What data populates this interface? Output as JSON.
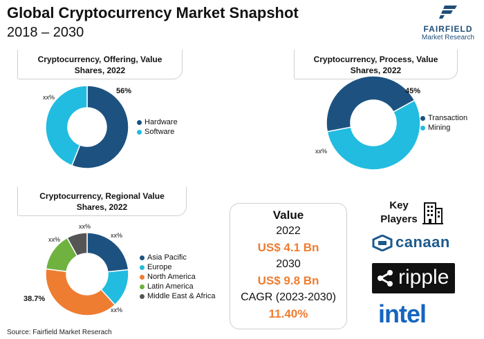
{
  "header": {
    "title": "Global Cryptocurrency Market Snapshot",
    "subtitle": "2018 – 2030"
  },
  "logo": {
    "name": "FAIRFIELD",
    "tagline": "Market Research"
  },
  "chart_data": [
    {
      "type": "pie",
      "variant": "donut",
      "title": "Cryptocurrency, Offering, Value Shares, 2022",
      "categories": [
        "Hardware",
        "Software"
      ],
      "values": [
        56,
        44
      ],
      "data_labels": [
        "56%",
        "xx%"
      ],
      "colors": [
        "#1d5280",
        "#21bce0"
      ],
      "legend": "right"
    },
    {
      "type": "pie",
      "variant": "donut",
      "title": "Cryptocurrency, Process, Value Shares, 2022",
      "categories": [
        "Transaction",
        "Mining"
      ],
      "values": [
        45,
        55
      ],
      "data_labels": [
        "45%",
        "xx%"
      ],
      "colors": [
        "#1d5280",
        "#21bce0"
      ],
      "legend": "right"
    },
    {
      "type": "pie",
      "variant": "donut",
      "title": "Cryptocurrency, Regional Value Shares, 2022",
      "categories": [
        "Asia Pacific",
        "Europe",
        "North America",
        "Latin America",
        "Middle East & Africa"
      ],
      "values": [
        23.3,
        15,
        38.7,
        15,
        8
      ],
      "data_labels": [
        "xx%",
        "xx%",
        "38.7%",
        "xx%",
        "xx%"
      ],
      "colors": [
        "#1d5280",
        "#21bce0",
        "#ee7d31",
        "#6fb23f",
        "#555555"
      ],
      "legend": "right"
    }
  ],
  "value_box": {
    "title": "Value",
    "year_1": "2022",
    "amount_1": "US$ 4.1 Bn",
    "year_2": "2030",
    "amount_2": "US$ 9.8 Bn",
    "cagr_label": "CAGR (2023-2030)",
    "cagr_value": "11.40%"
  },
  "key_players": {
    "title_line1": "Key",
    "title_line2": "Players",
    "icon": "building-icon",
    "companies": [
      {
        "name": "canaan",
        "icon": "canaan-logo-icon"
      },
      {
        "name": "ripple",
        "icon": "ripple-logo-icon"
      },
      {
        "name": "intel",
        "icon": "intel-logo"
      }
    ]
  },
  "footer": {
    "source": "Source: Fairfield Market Reserach"
  }
}
